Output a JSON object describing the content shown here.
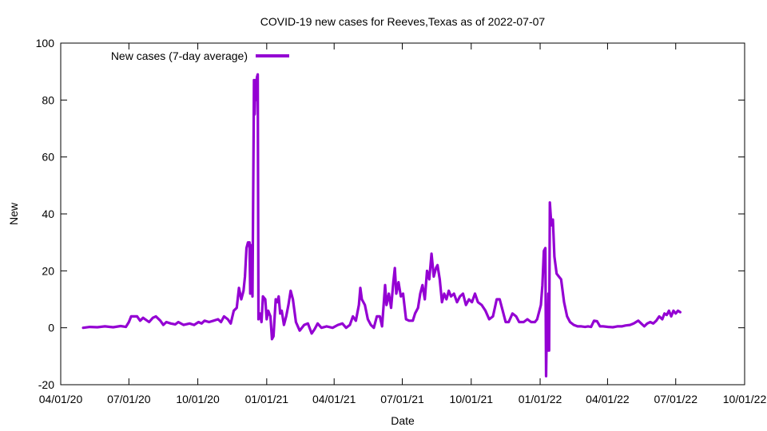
{
  "chart_data": {
    "type": "line",
    "title": "COVID-19 new cases for Reeves,Texas as of 2022-07-07",
    "xlabel": "Date",
    "ylabel": "New",
    "ylim": [
      -20,
      100
    ],
    "y_ticks": [
      -20,
      0,
      20,
      40,
      60,
      80,
      100
    ],
    "xlim": [
      "2020-04-01",
      "2022-10-01"
    ],
    "x_ticks": [
      {
        "date": "2020-04-01",
        "label": "04/01/20"
      },
      {
        "date": "2020-07-01",
        "label": "07/01/20"
      },
      {
        "date": "2020-10-01",
        "label": "10/01/20"
      },
      {
        "date": "2021-01-01",
        "label": "01/01/21"
      },
      {
        "date": "2021-04-01",
        "label": "04/01/21"
      },
      {
        "date": "2021-07-01",
        "label": "07/01/21"
      },
      {
        "date": "2021-10-01",
        "label": "10/01/21"
      },
      {
        "date": "2022-01-01",
        "label": "01/01/22"
      },
      {
        "date": "2022-04-01",
        "label": "04/01/22"
      },
      {
        "date": "2022-07-01",
        "label": "07/01/22"
      },
      {
        "date": "2022-10-01",
        "label": "10/01/22"
      }
    ],
    "legend_position": "top-left",
    "grid": false,
    "series": [
      {
        "name": "New cases (7-day average)",
        "color": "#9400d3",
        "points": [
          [
            "2020-05-01",
            0
          ],
          [
            "2020-05-10",
            0.3
          ],
          [
            "2020-05-20",
            0.2
          ],
          [
            "2020-05-30",
            0.5
          ],
          [
            "2020-06-10",
            0.2
          ],
          [
            "2020-06-20",
            0.6
          ],
          [
            "2020-06-27",
            0.3
          ],
          [
            "2020-07-01",
            2
          ],
          [
            "2020-07-04",
            4
          ],
          [
            "2020-07-12",
            4
          ],
          [
            "2020-07-16",
            2.5
          ],
          [
            "2020-07-20",
            3.5
          ],
          [
            "2020-07-28",
            2
          ],
          [
            "2020-08-02",
            3.5
          ],
          [
            "2020-08-06",
            4
          ],
          [
            "2020-08-12",
            2.5
          ],
          [
            "2020-08-16",
            1
          ],
          [
            "2020-08-20",
            2
          ],
          [
            "2020-08-26",
            1.5
          ],
          [
            "2020-09-01",
            1.2
          ],
          [
            "2020-09-05",
            2
          ],
          [
            "2020-09-12",
            1
          ],
          [
            "2020-09-20",
            1.5
          ],
          [
            "2020-09-26",
            1
          ],
          [
            "2020-10-02",
            2
          ],
          [
            "2020-10-06",
            1.5
          ],
          [
            "2020-10-10",
            2.5
          ],
          [
            "2020-10-16",
            2
          ],
          [
            "2020-10-22",
            2.5
          ],
          [
            "2020-10-28",
            3
          ],
          [
            "2020-11-01",
            2
          ],
          [
            "2020-11-05",
            4
          ],
          [
            "2020-11-10",
            3
          ],
          [
            "2020-11-14",
            1.5
          ],
          [
            "2020-11-18",
            6
          ],
          [
            "2020-11-22",
            7
          ],
          [
            "2020-11-25",
            14
          ],
          [
            "2020-11-28",
            10
          ],
          [
            "2020-12-01",
            13
          ],
          [
            "2020-12-03",
            18
          ],
          [
            "2020-12-05",
            28
          ],
          [
            "2020-12-07",
            30
          ],
          [
            "2020-12-09",
            30
          ],
          [
            "2020-12-10",
            12
          ],
          [
            "2020-12-11",
            29
          ],
          [
            "2020-12-13",
            11
          ],
          [
            "2020-12-15",
            87
          ],
          [
            "2020-12-16",
            75
          ],
          [
            "2020-12-17",
            87
          ],
          [
            "2020-12-18",
            80
          ],
          [
            "2020-12-19",
            88
          ],
          [
            "2020-12-20",
            89
          ],
          [
            "2020-12-21",
            3
          ],
          [
            "2020-12-23",
            5
          ],
          [
            "2020-12-25",
            2
          ],
          [
            "2020-12-27",
            11
          ],
          [
            "2020-12-30",
            10
          ],
          [
            "2021-01-01",
            3
          ],
          [
            "2021-01-03",
            6
          ],
          [
            "2021-01-06",
            4
          ],
          [
            "2021-01-08",
            -4
          ],
          [
            "2021-01-10",
            -3
          ],
          [
            "2021-01-13",
            10
          ],
          [
            "2021-01-15",
            9
          ],
          [
            "2021-01-17",
            11
          ],
          [
            "2021-01-19",
            5
          ],
          [
            "2021-01-21",
            6
          ],
          [
            "2021-01-24",
            1
          ],
          [
            "2021-01-27",
            4
          ],
          [
            "2021-01-30",
            8
          ],
          [
            "2021-02-02",
            13
          ],
          [
            "2021-02-05",
            10
          ],
          [
            "2021-02-09",
            2
          ],
          [
            "2021-02-14",
            -1
          ],
          [
            "2021-02-20",
            1
          ],
          [
            "2021-02-25",
            1.5
          ],
          [
            "2021-03-02",
            -2
          ],
          [
            "2021-03-06",
            -0.5
          ],
          [
            "2021-03-10",
            1.5
          ],
          [
            "2021-03-15",
            0
          ],
          [
            "2021-03-22",
            0.5
          ],
          [
            "2021-03-30",
            0
          ],
          [
            "2021-04-06",
            1
          ],
          [
            "2021-04-12",
            1.5
          ],
          [
            "2021-04-17",
            0
          ],
          [
            "2021-04-22",
            1
          ],
          [
            "2021-04-26",
            4
          ],
          [
            "2021-04-30",
            2.5
          ],
          [
            "2021-05-04",
            8
          ],
          [
            "2021-05-06",
            14
          ],
          [
            "2021-05-08",
            10
          ],
          [
            "2021-05-12",
            8
          ],
          [
            "2021-05-16",
            3
          ],
          [
            "2021-05-20",
            1
          ],
          [
            "2021-05-24",
            0
          ],
          [
            "2021-05-28",
            4
          ],
          [
            "2021-06-01",
            4
          ],
          [
            "2021-06-04",
            0.5
          ],
          [
            "2021-06-08",
            15
          ],
          [
            "2021-06-10",
            8
          ],
          [
            "2021-06-13",
            12
          ],
          [
            "2021-06-16",
            7
          ],
          [
            "2021-06-19",
            16
          ],
          [
            "2021-06-21",
            21
          ],
          [
            "2021-06-23",
            12
          ],
          [
            "2021-06-26",
            16
          ],
          [
            "2021-06-29",
            11
          ],
          [
            "2021-07-02",
            12
          ],
          [
            "2021-07-06",
            3
          ],
          [
            "2021-07-10",
            2.5
          ],
          [
            "2021-07-15",
            2.5
          ],
          [
            "2021-07-18",
            5
          ],
          [
            "2021-07-22",
            7
          ],
          [
            "2021-07-25",
            12
          ],
          [
            "2021-07-28",
            15
          ],
          [
            "2021-07-31",
            10
          ],
          [
            "2021-08-03",
            20
          ],
          [
            "2021-08-06",
            17
          ],
          [
            "2021-08-09",
            26
          ],
          [
            "2021-08-12",
            18
          ],
          [
            "2021-08-15",
            21
          ],
          [
            "2021-08-17",
            22
          ],
          [
            "2021-08-20",
            17
          ],
          [
            "2021-08-23",
            9
          ],
          [
            "2021-08-26",
            12
          ],
          [
            "2021-08-29",
            10
          ],
          [
            "2021-09-01",
            13
          ],
          [
            "2021-09-04",
            11
          ],
          [
            "2021-09-08",
            12
          ],
          [
            "2021-09-12",
            9
          ],
          [
            "2021-09-16",
            11
          ],
          [
            "2021-09-20",
            12
          ],
          [
            "2021-09-24",
            8
          ],
          [
            "2021-09-28",
            10
          ],
          [
            "2021-10-02",
            9
          ],
          [
            "2021-10-06",
            12
          ],
          [
            "2021-10-10",
            9
          ],
          [
            "2021-10-15",
            8
          ],
          [
            "2021-10-20",
            6
          ],
          [
            "2021-10-25",
            3
          ],
          [
            "2021-10-30",
            4
          ],
          [
            "2021-11-04",
            10
          ],
          [
            "2021-11-08",
            10
          ],
          [
            "2021-11-12",
            6
          ],
          [
            "2021-11-16",
            2
          ],
          [
            "2021-11-20",
            2
          ],
          [
            "2021-11-25",
            5
          ],
          [
            "2021-11-30",
            4
          ],
          [
            "2021-12-04",
            2
          ],
          [
            "2021-12-10",
            2
          ],
          [
            "2021-12-15",
            3
          ],
          [
            "2021-12-20",
            2
          ],
          [
            "2021-12-25",
            2
          ],
          [
            "2021-12-28",
            3
          ],
          [
            "2022-01-02",
            8
          ],
          [
            "2022-01-04",
            15
          ],
          [
            "2022-01-06",
            27
          ],
          [
            "2022-01-08",
            28
          ],
          [
            "2022-01-09",
            -17
          ],
          [
            "2022-01-10",
            3
          ],
          [
            "2022-01-11",
            -8
          ],
          [
            "2022-01-12",
            12
          ],
          [
            "2022-01-13",
            -8
          ],
          [
            "2022-01-14",
            44
          ],
          [
            "2022-01-16",
            36
          ],
          [
            "2022-01-18",
            38
          ],
          [
            "2022-01-20",
            25
          ],
          [
            "2022-01-23",
            19
          ],
          [
            "2022-01-26",
            18
          ],
          [
            "2022-01-29",
            17
          ],
          [
            "2022-02-02",
            9
          ],
          [
            "2022-02-06",
            4
          ],
          [
            "2022-02-10",
            2
          ],
          [
            "2022-02-15",
            1
          ],
          [
            "2022-02-20",
            0.5
          ],
          [
            "2022-02-25",
            0.5
          ],
          [
            "2022-03-02",
            0.3
          ],
          [
            "2022-03-06",
            0.5
          ],
          [
            "2022-03-10",
            0.3
          ],
          [
            "2022-03-14",
            2.5
          ],
          [
            "2022-03-18",
            2.3
          ],
          [
            "2022-03-22",
            0.5
          ],
          [
            "2022-03-26",
            0.5
          ],
          [
            "2022-04-02",
            0.3
          ],
          [
            "2022-04-08",
            0.2
          ],
          [
            "2022-04-14",
            0.5
          ],
          [
            "2022-04-20",
            0.5
          ],
          [
            "2022-04-25",
            0.8
          ],
          [
            "2022-05-01",
            1
          ],
          [
            "2022-05-06",
            1.5
          ],
          [
            "2022-05-12",
            2.5
          ],
          [
            "2022-05-16",
            1.5
          ],
          [
            "2022-05-20",
            0.5
          ],
          [
            "2022-05-24",
            1.5
          ],
          [
            "2022-05-28",
            2
          ],
          [
            "2022-06-01",
            1.5
          ],
          [
            "2022-06-05",
            2.5
          ],
          [
            "2022-06-09",
            4
          ],
          [
            "2022-06-13",
            3
          ],
          [
            "2022-06-16",
            5
          ],
          [
            "2022-06-19",
            4.5
          ],
          [
            "2022-06-22",
            6
          ],
          [
            "2022-06-25",
            4
          ],
          [
            "2022-06-28",
            6
          ],
          [
            "2022-07-01",
            5
          ],
          [
            "2022-07-04",
            6
          ],
          [
            "2022-07-07",
            5.5
          ]
        ]
      }
    ]
  }
}
